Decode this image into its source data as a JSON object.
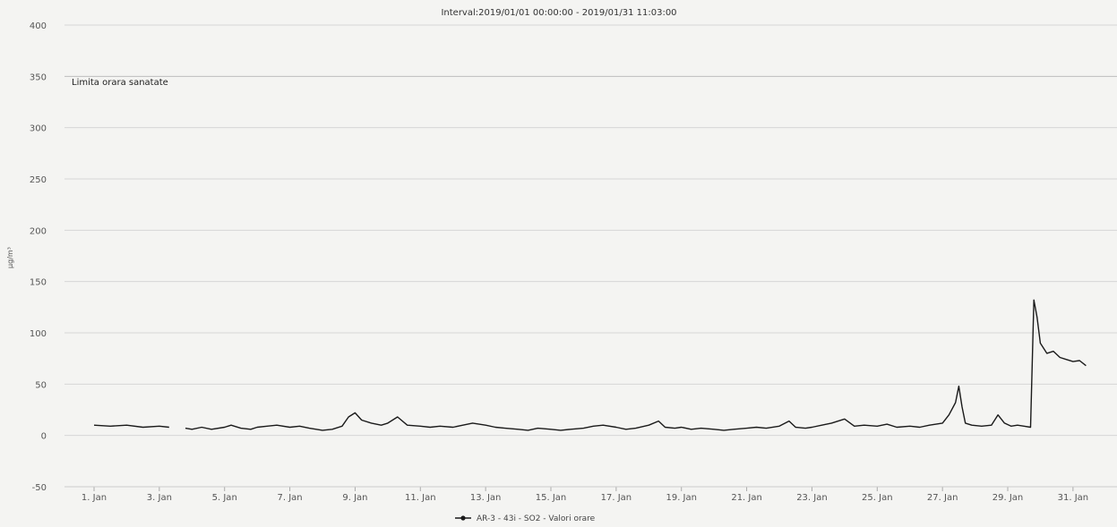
{
  "chart_data": {
    "type": "line",
    "title": "Interval:2019/01/01 00:00:00 - 2019/01/31 11:03:00",
    "ylabel": "µg/m³",
    "xlabel": "",
    "ylim": [
      -50,
      400
    ],
    "xlim": [
      1,
      31.5
    ],
    "y_ticks": [
      400,
      350,
      300,
      250,
      200,
      150,
      100,
      50,
      0,
      -50
    ],
    "y_tick_labels": [
      "400",
      "350",
      "300",
      "250",
      "200",
      "150",
      "100",
      "50",
      "0",
      "-50"
    ],
    "x_ticks": [
      {
        "value": 1,
        "label": "1. Jan"
      },
      {
        "value": 3,
        "label": "3. Jan"
      },
      {
        "value": 5,
        "label": "5. Jan"
      },
      {
        "value": 7,
        "label": "7. Jan"
      },
      {
        "value": 9,
        "label": "9. Jan"
      },
      {
        "value": 11,
        "label": "11. Jan"
      },
      {
        "value": 13,
        "label": "13. Jan"
      },
      {
        "value": 15,
        "label": "15. Jan"
      },
      {
        "value": 17,
        "label": "17. Jan"
      },
      {
        "value": 19,
        "label": "19. Jan"
      },
      {
        "value": 21,
        "label": "21. Jan"
      },
      {
        "value": 23,
        "label": "23. Jan"
      },
      {
        "value": 25,
        "label": "25. Jan"
      },
      {
        "value": 27,
        "label": "27. Jan"
      },
      {
        "value": 29,
        "label": "29. Jan"
      },
      {
        "value": 31,
        "label": "31. Jan"
      }
    ],
    "grid": true,
    "reference_line": {
      "value": 350,
      "label": "Limita orara sanatate"
    },
    "legend": {
      "position": "bottom-center"
    },
    "series": [
      {
        "name": "AR-3 - 43i - SO2 - Valori orare",
        "color": "#1a1a1a",
        "segments": [
          [
            [
              1,
              10
            ],
            [
              1.5,
              9
            ],
            [
              2,
              10
            ],
            [
              2.5,
              8
            ],
            [
              3,
              9
            ],
            [
              3.3,
              8
            ]
          ],
          [
            [
              3.8,
              7
            ],
            [
              4,
              6
            ],
            [
              4.3,
              8
            ],
            [
              4.6,
              6
            ],
            [
              5,
              8
            ],
            [
              5.2,
              10
            ],
            [
              5.5,
              7
            ],
            [
              5.8,
              6
            ],
            [
              6,
              8
            ],
            [
              6.3,
              9
            ],
            [
              6.6,
              10
            ],
            [
              7,
              8
            ],
            [
              7.3,
              9
            ],
            [
              7.6,
              7
            ],
            [
              8,
              5
            ],
            [
              8.3,
              6
            ],
            [
              8.6,
              9
            ],
            [
              8.8,
              18
            ],
            [
              9,
              22
            ],
            [
              9.2,
              15
            ],
            [
              9.5,
              12
            ],
            [
              9.8,
              10
            ],
            [
              10,
              12
            ],
            [
              10.3,
              18
            ],
            [
              10.6,
              10
            ],
            [
              11,
              9
            ],
            [
              11.3,
              8
            ],
            [
              11.6,
              9
            ],
            [
              12,
              8
            ],
            [
              12.3,
              10
            ],
            [
              12.6,
              12
            ],
            [
              13,
              10
            ],
            [
              13.3,
              8
            ],
            [
              13.6,
              7
            ],
            [
              14,
              6
            ],
            [
              14.3,
              5
            ],
            [
              14.6,
              7
            ],
            [
              15,
              6
            ],
            [
              15.3,
              5
            ],
            [
              15.6,
              6
            ],
            [
              16,
              7
            ],
            [
              16.3,
              9
            ],
            [
              16.6,
              10
            ],
            [
              17,
              8
            ],
            [
              17.3,
              6
            ],
            [
              17.6,
              7
            ],
            [
              18,
              10
            ],
            [
              18.3,
              14
            ],
            [
              18.5,
              8
            ],
            [
              18.8,
              7
            ],
            [
              19,
              8
            ],
            [
              19.3,
              6
            ],
            [
              19.6,
              7
            ],
            [
              20,
              6
            ],
            [
              20.3,
              5
            ],
            [
              20.6,
              6
            ],
            [
              21,
              7
            ],
            [
              21.3,
              8
            ],
            [
              21.6,
              7
            ],
            [
              22,
              9
            ],
            [
              22.3,
              14
            ],
            [
              22.5,
              8
            ],
            [
              22.8,
              7
            ],
            [
              23,
              8
            ],
            [
              23.3,
              10
            ],
            [
              23.6,
              12
            ],
            [
              24,
              16
            ],
            [
              24.3,
              9
            ],
            [
              24.6,
              10
            ],
            [
              25,
              9
            ],
            [
              25.3,
              11
            ],
            [
              25.6,
              8
            ],
            [
              26,
              9
            ],
            [
              26.3,
              8
            ],
            [
              26.6,
              10
            ],
            [
              27,
              12
            ],
            [
              27.2,
              20
            ],
            [
              27.4,
              32
            ],
            [
              27.5,
              48
            ],
            [
              27.6,
              28
            ],
            [
              27.7,
              12
            ],
            [
              27.9,
              10
            ],
            [
              28.2,
              9
            ],
            [
              28.5,
              10
            ],
            [
              28.7,
              20
            ],
            [
              28.9,
              12
            ],
            [
              29.1,
              9
            ],
            [
              29.3,
              10
            ],
            [
              29.5,
              9
            ],
            [
              29.7,
              8
            ],
            [
              29.8,
              132
            ],
            [
              29.9,
              115
            ],
            [
              30,
              90
            ],
            [
              30.2,
              80
            ],
            [
              30.4,
              82
            ],
            [
              30.6,
              76
            ],
            [
              30.8,
              74
            ],
            [
              31,
              72
            ],
            [
              31.2,
              73
            ],
            [
              31.4,
              68
            ]
          ]
        ]
      }
    ]
  }
}
